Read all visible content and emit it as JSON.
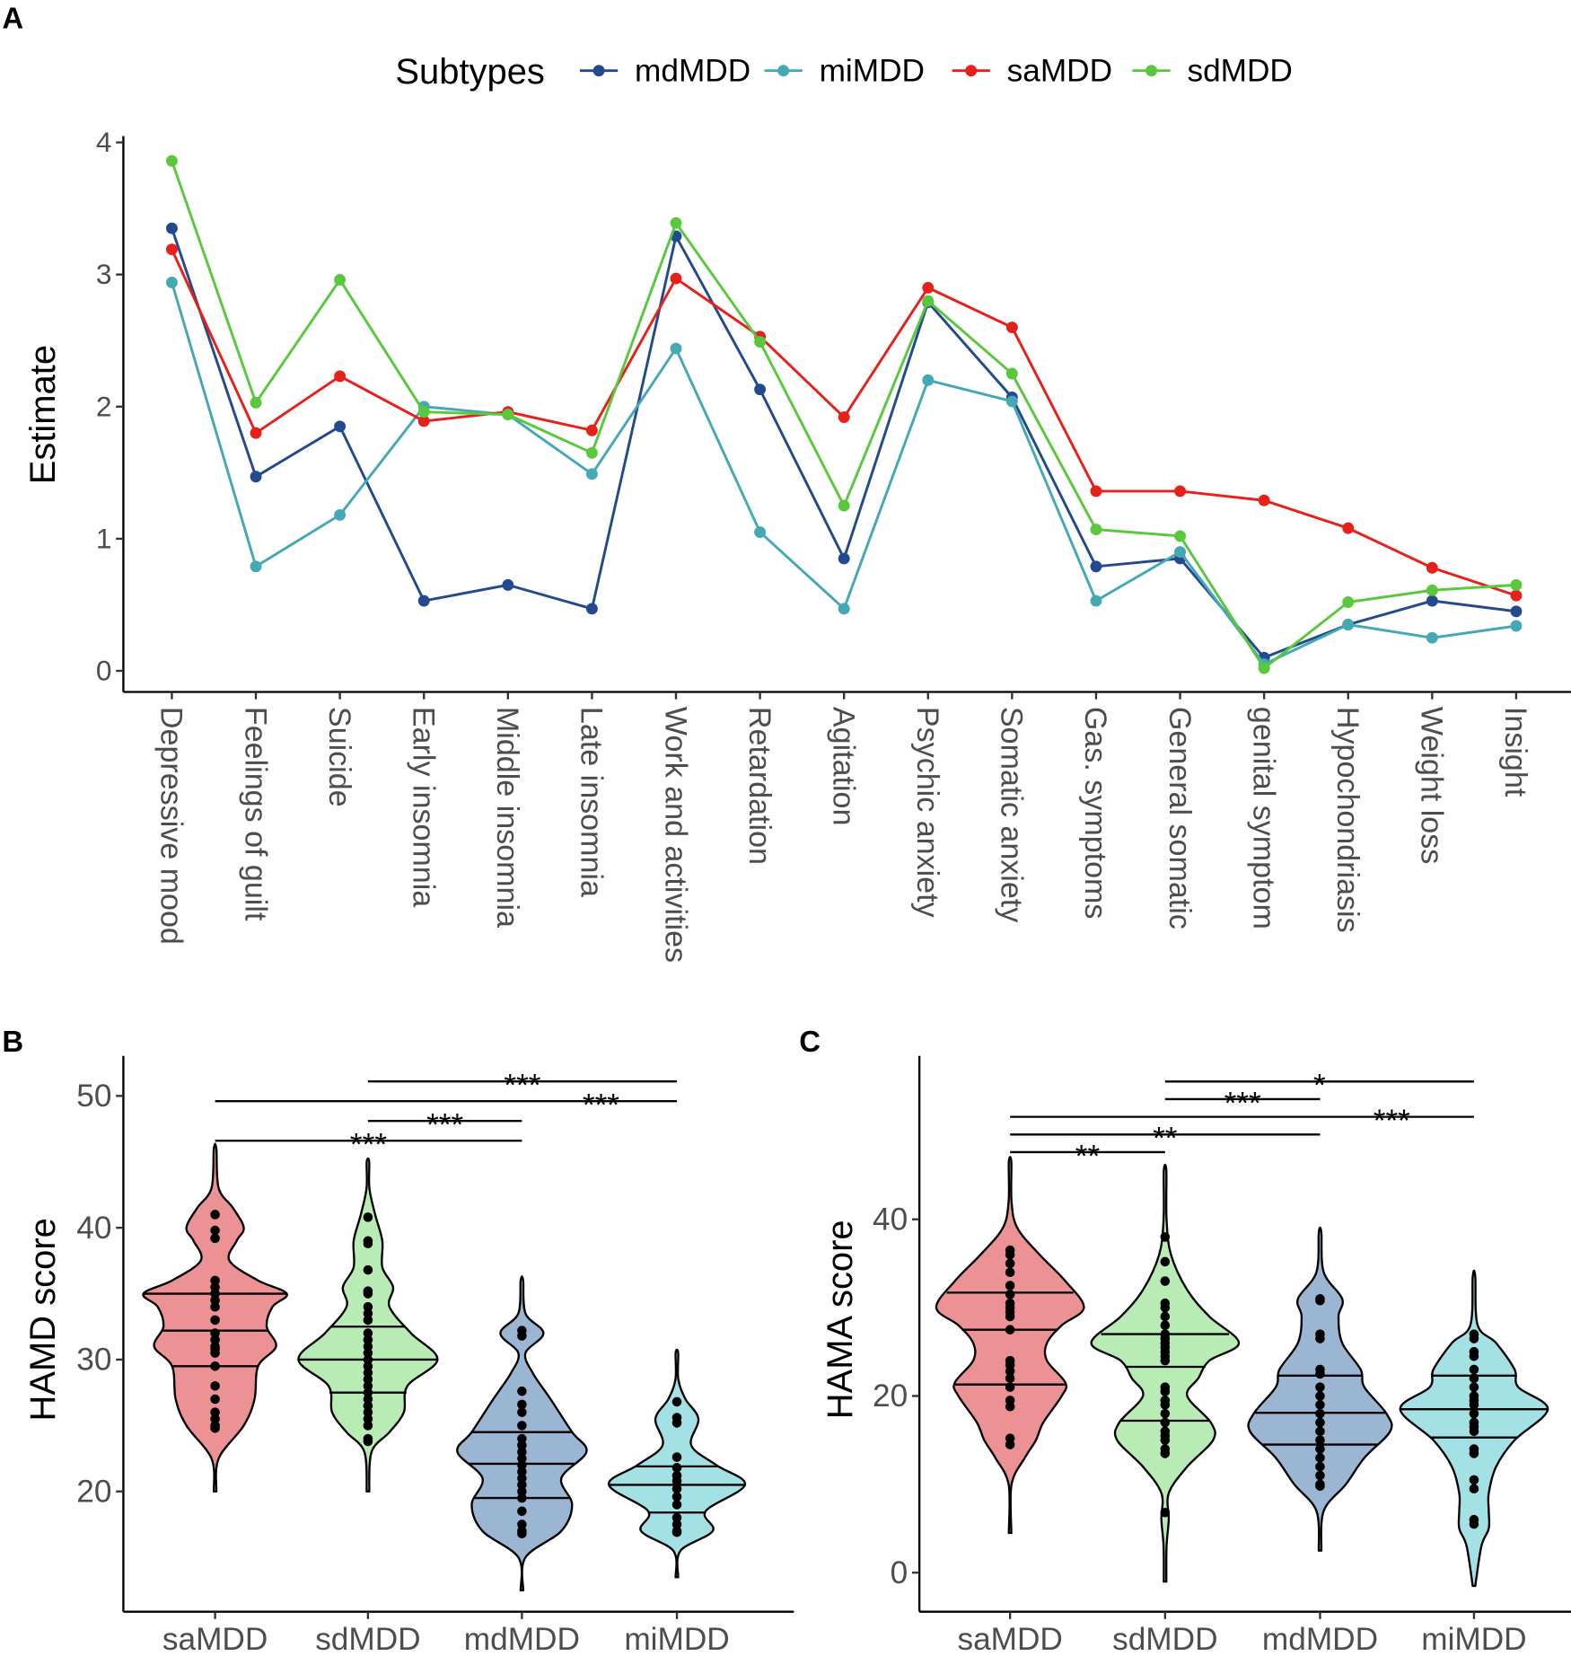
{
  "panel_labels": {
    "a": "A",
    "b": "B",
    "c": "C"
  },
  "chart_data": [
    {
      "type": "line",
      "panel": "A",
      "ylabel": "Estimate",
      "ylim": [
        0,
        4
      ],
      "yticks": [
        "0",
        "1",
        "2",
        "3",
        "4"
      ],
      "legend": {
        "title": "Subtypes",
        "placement": "top"
      },
      "grid": false,
      "categories": [
        "Depressive mood",
        "Feelings of guilt",
        "Suicide",
        "Early insomnia",
        "Middle insomnia",
        "Late insomnia",
        "Work and activities",
        "Retardation",
        "Agitation",
        "Psychic anxiety",
        "Somatic anxiety",
        "Gas. symptoms",
        "General somatic",
        "genital symptom",
        "Hypochondriasis",
        "Weight loss",
        "Insight"
      ],
      "series": [
        {
          "name": "mdMDD",
          "color": "#234a8f",
          "values": [
            3.35,
            1.47,
            1.85,
            0.53,
            0.65,
            0.47,
            3.29,
            2.13,
            0.85,
            2.79,
            2.07,
            0.79,
            0.85,
            0.1,
            0.35,
            0.53,
            0.45
          ]
        },
        {
          "name": "miMDD",
          "color": "#45a8b5",
          "values": [
            2.94,
            0.79,
            1.18,
            2.0,
            1.94,
            1.49,
            2.44,
            1.05,
            0.47,
            2.2,
            2.04,
            0.53,
            0.9,
            0.05,
            0.35,
            0.25,
            0.34
          ]
        },
        {
          "name": "saMDD",
          "color": "#e8201a",
          "values": [
            3.19,
            1.8,
            2.23,
            1.89,
            1.96,
            1.82,
            2.97,
            2.53,
            1.92,
            2.9,
            2.6,
            1.36,
            1.36,
            1.29,
            1.08,
            0.78,
            0.57
          ]
        },
        {
          "name": "sdMDD",
          "color": "#5ac83c",
          "values": [
            3.86,
            2.03,
            2.96,
            1.96,
            1.94,
            1.65,
            3.39,
            2.49,
            1.25,
            2.8,
            2.25,
            1.07,
            1.02,
            0.02,
            0.52,
            0.61,
            0.65
          ]
        }
      ]
    },
    {
      "type": "violin",
      "panel": "B",
      "ylabel": "HAMD score",
      "yticks": [
        "20",
        "30",
        "40",
        "50"
      ],
      "ylim": [
        12,
        53
      ],
      "categories": [
        "saMDD",
        "sdMDD",
        "mdMDD",
        "miMDD"
      ],
      "groups": [
        {
          "name": "saMDD",
          "fill": "#ec9295",
          "quartiles": [
            29.5,
            32.2,
            35
          ],
          "density": [
            [
              20,
              0
            ],
            [
              22.5,
              0.05
            ],
            [
              25,
              0.4
            ],
            [
              27,
              0.55
            ],
            [
              29.5,
              0.6
            ],
            [
              31,
              0.85
            ],
            [
              32.5,
              0.72
            ],
            [
              34,
              0.8
            ],
            [
              35,
              1.0
            ],
            [
              36,
              0.6
            ],
            [
              37.5,
              0.2
            ],
            [
              39,
              0.3
            ],
            [
              40,
              0.4
            ],
            [
              41.5,
              0.25
            ],
            [
              43,
              0.05
            ],
            [
              46,
              0
            ]
          ],
          "points": [
            41,
            39.8,
            39.2,
            36,
            35.5,
            35,
            34.5,
            34,
            33,
            32,
            31.5,
            31,
            30.8,
            30.5,
            29.5,
            28,
            27,
            26,
            25.5,
            25,
            24.8
          ]
        },
        {
          "name": "sdMDD",
          "fill": "#b9ebb4",
          "quartiles": [
            27.5,
            30,
            32.5
          ],
          "density": [
            [
              20,
              0
            ],
            [
              23,
              0.05
            ],
            [
              24.5,
              0.3
            ],
            [
              26,
              0.5
            ],
            [
              28,
              0.55
            ],
            [
              30,
              0.97
            ],
            [
              32,
              0.6
            ],
            [
              34,
              0.3
            ],
            [
              35.5,
              0.35
            ],
            [
              37,
              0.2
            ],
            [
              39,
              0.2
            ],
            [
              41,
              0.1
            ],
            [
              43,
              0.02
            ],
            [
              45,
              0
            ]
          ],
          "points": [
            40.8,
            39,
            38.8,
            36.8,
            35.2,
            35,
            34,
            33.5,
            33,
            32,
            31.5,
            31,
            30.5,
            30,
            29.5,
            29,
            28.5,
            28,
            27.5,
            27,
            26.5,
            26,
            25.5,
            25,
            24,
            23.8
          ]
        },
        {
          "name": "mdMDD",
          "fill": "#9ab6d2",
          "quartiles": [
            19.5,
            22.1,
            24.5
          ],
          "density": [
            [
              12.5,
              0
            ],
            [
              15,
              0.05
            ],
            [
              17,
              0.55
            ],
            [
              19,
              0.7
            ],
            [
              21,
              0.55
            ],
            [
              23,
              0.9
            ],
            [
              24.5,
              0.7
            ],
            [
              27,
              0.4
            ],
            [
              29,
              0.15
            ],
            [
              30.5,
              0.05
            ],
            [
              32,
              0.3
            ],
            [
              33.5,
              0.05
            ],
            [
              36,
              0
            ]
          ],
          "points": [
            32.2,
            31.8,
            27.6,
            26.6,
            26,
            25,
            24,
            23.5,
            23,
            22.5,
            22,
            21.5,
            21,
            20.5,
            20,
            19.5,
            18.5,
            17.5,
            17,
            16.8
          ]
        },
        {
          "name": "miMDD",
          "fill": "#a4e1e4",
          "quartiles": [
            18.4,
            20.5,
            21.9
          ],
          "density": [
            [
              13.5,
              0
            ],
            [
              15.5,
              0.05
            ],
            [
              17,
              0.5
            ],
            [
              18.5,
              0.4
            ],
            [
              20.5,
              0.95
            ],
            [
              22,
              0.55
            ],
            [
              23.5,
              0.2
            ],
            [
              25.5,
              0.3
            ],
            [
              27,
              0.12
            ],
            [
              28.5,
              0.02
            ],
            [
              30.5,
              0
            ]
          ],
          "points": [
            26.8,
            25.6,
            25.2,
            22.6,
            21.8,
            21.2,
            20.8,
            20.2,
            19.6,
            19,
            18,
            17.5,
            17,
            16.9
          ]
        }
      ],
      "comparisons": [
        {
          "from": "sdMDD",
          "to": "miMDD",
          "y": 51.1,
          "label": "***"
        },
        {
          "from": "saMDD",
          "to": "miMDD",
          "y": 49.6,
          "label": "***"
        },
        {
          "from": "sdMDD",
          "to": "mdMDD",
          "y": 48.1,
          "label": "***"
        },
        {
          "from": "saMDD",
          "to": "mdMDD",
          "y": 46.6,
          "label": "***"
        }
      ]
    },
    {
      "type": "violin",
      "panel": "C",
      "ylabel": "HAMA score",
      "yticks": [
        "0",
        "20",
        "40"
      ],
      "ylim": [
        -4.5,
        58
      ],
      "categories": [
        "saMDD",
        "sdMDD",
        "mdMDD",
        "miMDD"
      ],
      "groups": [
        {
          "name": "saMDD",
          "fill": "#ec9295",
          "quartiles": [
            21.3,
            27.5,
            31.7
          ],
          "density": [
            [
              4.5,
              0
            ],
            [
              10,
              0.02
            ],
            [
              13,
              0.2
            ],
            [
              15,
              0.35
            ],
            [
              17,
              0.45
            ],
            [
              20,
              0.7
            ],
            [
              21.5,
              0.75
            ],
            [
              24,
              0.5
            ],
            [
              26,
              0.5
            ],
            [
              28,
              0.7
            ],
            [
              30,
              1.0
            ],
            [
              33,
              0.75
            ],
            [
              36,
              0.4
            ],
            [
              39,
              0.1
            ],
            [
              42,
              0.02
            ],
            [
              46.5,
              0
            ]
          ],
          "points": [
            36.5,
            36,
            35,
            34,
            32.5,
            31.5,
            30.5,
            30,
            29.5,
            29,
            27.5,
            24,
            23.5,
            22.8,
            22,
            21,
            19.5,
            18.8,
            15.2,
            14.5
          ]
        },
        {
          "name": "sdMDD",
          "fill": "#b9ebb4",
          "quartiles": [
            17.2,
            23.3,
            27
          ],
          "density": [
            [
              -1,
              0
            ],
            [
              3,
              0.02
            ],
            [
              6,
              0.05
            ],
            [
              9,
              0.05
            ],
            [
              12,
              0.3
            ],
            [
              15,
              0.65
            ],
            [
              17,
              0.62
            ],
            [
              20,
              0.3
            ],
            [
              22,
              0.45
            ],
            [
              24,
              0.6
            ],
            [
              26,
              1.0
            ],
            [
              29,
              0.6
            ],
            [
              32,
              0.3
            ],
            [
              36,
              0.08
            ],
            [
              40,
              0.02
            ],
            [
              45.5,
              0
            ]
          ],
          "points": [
            38,
            35.2,
            33,
            30.5,
            30,
            29,
            28,
            27,
            26.5,
            26,
            25.5,
            25,
            24.5,
            24,
            21,
            20.5,
            19.5,
            19,
            18,
            17,
            16,
            15.5,
            15,
            14,
            13.5,
            6.8
          ]
        },
        {
          "name": "mdMDD",
          "fill": "#9ab6d2",
          "quartiles": [
            14.5,
            18.1,
            22.3
          ],
          "density": [
            [
              2.5,
              0
            ],
            [
              7,
              0.05
            ],
            [
              10,
              0.35
            ],
            [
              13,
              0.6
            ],
            [
              16,
              0.95
            ],
            [
              18,
              0.9
            ],
            [
              21,
              0.6
            ],
            [
              23,
              0.55
            ],
            [
              26,
              0.3
            ],
            [
              29,
              0.25
            ],
            [
              31,
              0.3
            ],
            [
              34,
              0.05
            ],
            [
              38.5,
              0
            ]
          ],
          "points": [
            31,
            30.8,
            27,
            26.5,
            23,
            22.5,
            21,
            20,
            19,
            18,
            17,
            16,
            15,
            14,
            13,
            12,
            11,
            10,
            9.8
          ]
        },
        {
          "name": "miMDD",
          "fill": "#a4e1e4",
          "quartiles": [
            15.3,
            18.5,
            22.3
          ],
          "density": [
            [
              -1.5,
              0
            ],
            [
              3,
              0.1
            ],
            [
              5,
              0.2
            ],
            [
              7,
              0.2
            ],
            [
              9,
              0.2
            ],
            [
              12,
              0.3
            ],
            [
              15,
              0.55
            ],
            [
              18.5,
              1.0
            ],
            [
              21,
              0.6
            ],
            [
              23,
              0.55
            ],
            [
              26,
              0.3
            ],
            [
              28,
              0.05
            ],
            [
              33.5,
              0
            ]
          ],
          "points": [
            27,
            26.5,
            25,
            24.5,
            23,
            22,
            21,
            20,
            19.5,
            19,
            18,
            17,
            16.5,
            16,
            14,
            13.5,
            10.5,
            9.5,
            6,
            5.5
          ]
        }
      ],
      "comparisons": [
        {
          "from": "sdMDD",
          "to": "miMDD",
          "y": 55.6,
          "label": "*"
        },
        {
          "from": "sdMDD",
          "to": "mdMDD",
          "y": 53.6,
          "label": "***"
        },
        {
          "from": "saMDD",
          "to": "miMDD",
          "y": 51.6,
          "label": "***"
        },
        {
          "from": "saMDD",
          "to": "mdMDD",
          "y": 49.6,
          "label": "**"
        },
        {
          "from": "saMDD",
          "to": "sdMDD",
          "y": 47.6,
          "label": "**"
        }
      ]
    }
  ]
}
